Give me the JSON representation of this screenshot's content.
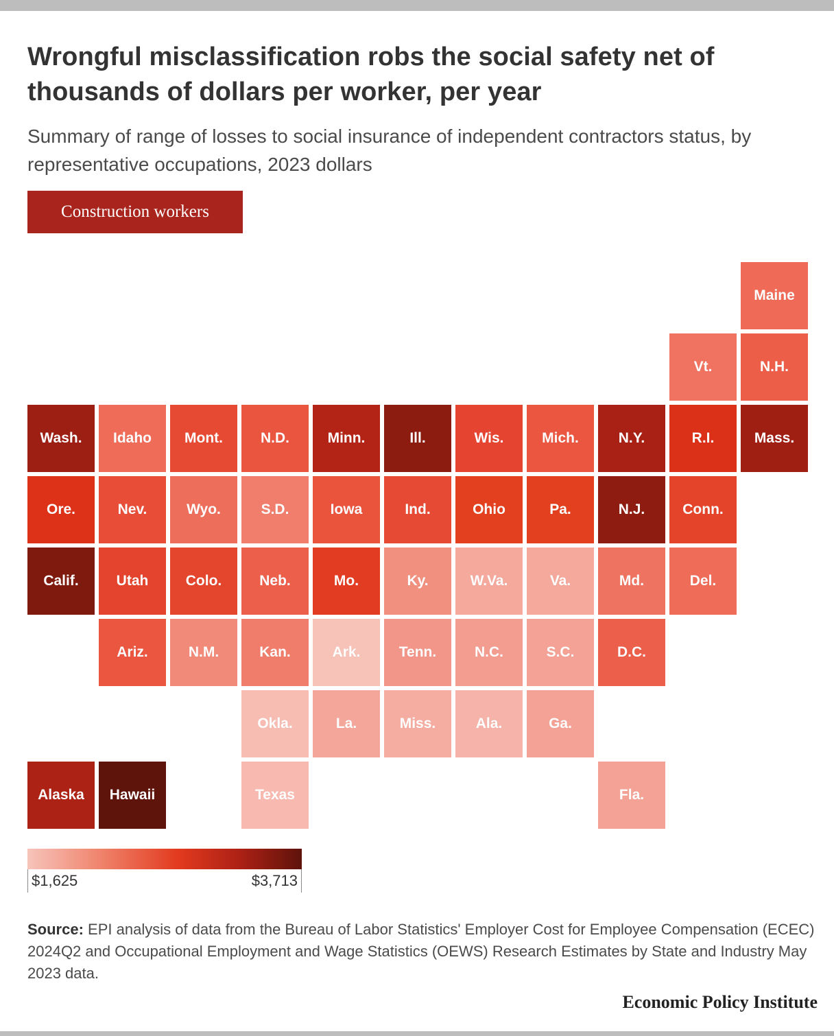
{
  "title": "Wrongful misclassification robs the social safety net of thousands of dollars per worker, per year",
  "subtitle": "Summary of range of losses to social insurance of independent contractors status, by representative occupations, 2023 dollars",
  "occupation_button": "Construction workers",
  "legend": {
    "min_label": "$1,625",
    "max_label": "$3,713"
  },
  "source": {
    "label": "Source:",
    "text": "EPI analysis of data from the Bureau of Labor Statistics' Employer Cost for Employee Compensation (ECEC) 2024Q2 and Occupational Employment and Wage Statistics (OEWS) Research Estimates by State and Industry May 2023 data."
  },
  "logo_text": "Economic Policy Institute",
  "tiles": [
    {
      "label": "Maine",
      "row": 0,
      "col": 10,
      "color": "#ef6b58"
    },
    {
      "label": "Vt.",
      "row": 1,
      "col": 9,
      "color": "#f07260"
    },
    {
      "label": "N.H.",
      "row": 1,
      "col": 10,
      "color": "#ec5e48"
    },
    {
      "label": "Wash.",
      "row": 2,
      "col": 0,
      "color": "#9d1e12"
    },
    {
      "label": "Idaho",
      "row": 2,
      "col": 1,
      "color": "#ef6c59"
    },
    {
      "label": "Mont.",
      "row": 2,
      "col": 2,
      "color": "#e64a33"
    },
    {
      "label": "N.D.",
      "row": 2,
      "col": 3,
      "color": "#ea553f"
    },
    {
      "label": "Minn.",
      "row": 2,
      "col": 4,
      "color": "#b32416"
    },
    {
      "label": "Ill.",
      "row": 2,
      "col": 5,
      "color": "#8c1c10"
    },
    {
      "label": "Wis.",
      "row": 2,
      "col": 6,
      "color": "#e54431"
    },
    {
      "label": "Mich.",
      "row": 2,
      "col": 7,
      "color": "#ea563f"
    },
    {
      "label": "N.Y.",
      "row": 2,
      "col": 8,
      "color": "#a82114"
    },
    {
      "label": "R.I.",
      "row": 2,
      "col": 9,
      "color": "#dc3119"
    },
    {
      "label": "Mass.",
      "row": 2,
      "col": 10,
      "color": "#a01f13"
    },
    {
      "label": "Ore.",
      "row": 3,
      "col": 0,
      "color": "#dd3118"
    },
    {
      "label": "Nev.",
      "row": 3,
      "col": 1,
      "color": "#e84e37"
    },
    {
      "label": "Wyo.",
      "row": 3,
      "col": 2,
      "color": "#ee6e5c"
    },
    {
      "label": "S.D.",
      "row": 3,
      "col": 3,
      "color": "#f17e6c"
    },
    {
      "label": "Iowa",
      "row": 3,
      "col": 4,
      "color": "#ea543d"
    },
    {
      "label": "Ind.",
      "row": 3,
      "col": 5,
      "color": "#e64a34"
    },
    {
      "label": "Ohio",
      "row": 3,
      "col": 6,
      "color": "#e2401f"
    },
    {
      "label": "Pa.",
      "row": 3,
      "col": 7,
      "color": "#e2401f"
    },
    {
      "label": "N.J.",
      "row": 3,
      "col": 8,
      "color": "#8e1c10"
    },
    {
      "label": "Conn.",
      "row": 3,
      "col": 9,
      "color": "#e4452a"
    },
    {
      "label": "Calif.",
      "row": 4,
      "col": 0,
      "color": "#7e1a0e"
    },
    {
      "label": "Utah",
      "row": 4,
      "col": 1,
      "color": "#e4442d"
    },
    {
      "label": "Colo.",
      "row": 4,
      "col": 2,
      "color": "#e4452d"
    },
    {
      "label": "Neb.",
      "row": 4,
      "col": 3,
      "color": "#ec604b"
    },
    {
      "label": "Mo.",
      "row": 4,
      "col": 4,
      "color": "#e23d23"
    },
    {
      "label": "Ky.",
      "row": 4,
      "col": 5,
      "color": "#f29080"
    },
    {
      "label": "W.Va.",
      "row": 4,
      "col": 6,
      "color": "#f5a89c"
    },
    {
      "label": "Va.",
      "row": 4,
      "col": 7,
      "color": "#f5a89c"
    },
    {
      "label": "Md.",
      "row": 4,
      "col": 8,
      "color": "#ef7361"
    },
    {
      "label": "Del.",
      "row": 4,
      "col": 9,
      "color": "#ef6c59"
    },
    {
      "label": "Ariz.",
      "row": 5,
      "col": 1,
      "color": "#ea563f"
    },
    {
      "label": "N.M.",
      "row": 5,
      "col": 2,
      "color": "#f28a79"
    },
    {
      "label": "Kan.",
      "row": 5,
      "col": 3,
      "color": "#f07d6b"
    },
    {
      "label": "Ark.",
      "row": 5,
      "col": 4,
      "color": "#f7c2b8"
    },
    {
      "label": "Tenn.",
      "row": 5,
      "col": 5,
      "color": "#f3968a"
    },
    {
      "label": "N.C.",
      "row": 5,
      "col": 6,
      "color": "#f39d91"
    },
    {
      "label": "S.C.",
      "row": 5,
      "col": 7,
      "color": "#f4a296"
    },
    {
      "label": "D.C.",
      "row": 5,
      "col": 8,
      "color": "#ec5f4a"
    },
    {
      "label": "Okla.",
      "row": 6,
      "col": 3,
      "color": "#f7bcb2"
    },
    {
      "label": "La.",
      "row": 6,
      "col": 4,
      "color": "#f4a69a"
    },
    {
      "label": "Miss.",
      "row": 6,
      "col": 5,
      "color": "#f5ada2"
    },
    {
      "label": "Ala.",
      "row": 6,
      "col": 6,
      "color": "#f6b3a9"
    },
    {
      "label": "Ga.",
      "row": 6,
      "col": 7,
      "color": "#f4a296"
    },
    {
      "label": "Alaska",
      "row": 7,
      "col": 0,
      "color": "#ac2214"
    },
    {
      "label": "Hawaii",
      "row": 7,
      "col": 1,
      "color": "#5e130b"
    },
    {
      "label": "Texas",
      "row": 7,
      "col": 3,
      "color": "#f8bab0"
    },
    {
      "label": "Fla.",
      "row": 7,
      "col": 8,
      "color": "#f4a296"
    }
  ]
}
